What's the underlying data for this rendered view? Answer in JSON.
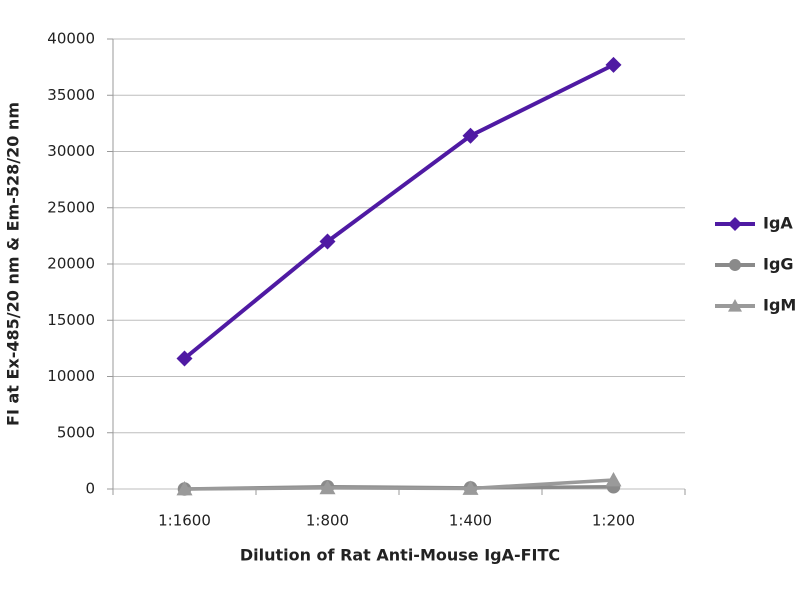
{
  "chart_data": {
    "type": "line",
    "x_label": "Dilution of Rat Anti-Mouse IgA-FITC",
    "y_label": "FI at Ex-485/20 nm & Em-528/20 nm",
    "categories": [
      "1:1600",
      "1:800",
      "1:400",
      "1:200"
    ],
    "series": [
      {
        "name": "IgA",
        "color": "#4f1aa3",
        "marker": "diamond",
        "values": [
          11600,
          22000,
          31400,
          37700
        ]
      },
      {
        "name": "IgG",
        "color": "#8a8a8a",
        "marker": "circle",
        "values": [
          0,
          200,
          100,
          200
        ]
      },
      {
        "name": "IgM",
        "color": "#9a9a9a",
        "marker": "triangle",
        "values": [
          0,
          100,
          50,
          800
        ]
      }
    ],
    "ylim": [
      0,
      40000
    ],
    "yticks": [
      0,
      5000,
      10000,
      15000,
      20000,
      25000,
      30000,
      35000,
      40000
    ],
    "grid": true
  }
}
